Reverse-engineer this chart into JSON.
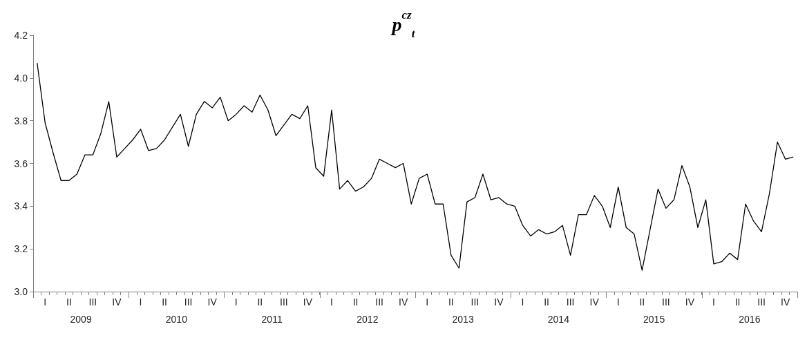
{
  "chart_data": {
    "type": "line",
    "title": "p$^{cz}$$_{t}$",
    "categories": [
      null,
      "I",
      null,
      null,
      "II",
      null,
      null,
      "III",
      null,
      null,
      "IV",
      null,
      null,
      "I",
      null,
      null,
      "II",
      null,
      null,
      "III",
      null,
      null,
      "IV",
      null,
      null,
      "I",
      null,
      null,
      "II",
      null,
      null,
      "III",
      null,
      null,
      "IV",
      null,
      null,
      "I",
      null,
      null,
      "II",
      null,
      null,
      "III",
      null,
      null,
      "IV",
      null,
      null,
      "I",
      null,
      null,
      "II",
      null,
      null,
      "III",
      null,
      null,
      "IV",
      null,
      null,
      "I",
      null,
      null,
      "II",
      null,
      null,
      "III",
      null,
      null,
      "IV",
      null,
      null,
      "I",
      null,
      null,
      "II",
      null,
      null,
      "III",
      null,
      null,
      "IV",
      null,
      null,
      "I",
      null,
      null,
      "II",
      null,
      null,
      "III",
      null,
      null,
      "IV",
      null
    ],
    "annotations": [
      "2009",
      "2010",
      "2011",
      "2012",
      "2013",
      "2014",
      "2015",
      "2016"
    ],
    "series": [
      {
        "color": "#000000",
        "values": [
          4.07,
          3.79,
          3.65,
          3.52,
          3.52,
          3.55,
          3.64,
          3.64,
          3.74,
          3.89,
          3.63,
          3.67,
          3.71,
          3.76,
          3.66,
          3.67,
          3.71,
          3.77,
          3.83,
          3.68,
          3.83,
          3.89,
          3.86,
          3.91,
          3.8,
          3.83,
          3.87,
          3.84,
          3.92,
          3.85,
          3.73,
          3.78,
          3.83,
          3.81,
          3.87,
          3.58,
          3.54,
          3.85,
          3.48,
          3.52,
          3.47,
          3.49,
          3.53,
          3.62,
          3.6,
          3.58,
          3.6,
          3.41,
          3.53,
          3.55,
          3.41,
          3.41,
          3.17,
          3.11,
          3.42,
          3.44,
          3.55,
          3.43,
          3.44,
          3.41,
          3.4,
          3.31,
          3.26,
          3.29,
          3.27,
          3.28,
          3.31,
          3.17,
          3.36,
          3.36,
          3.45,
          3.4,
          3.3,
          3.49,
          3.3,
          3.27,
          3.1,
          3.29,
          3.48,
          3.39,
          3.43,
          3.59,
          3.49,
          3.3,
          3.43,
          3.13,
          3.14,
          3.18,
          3.15,
          3.41,
          3.33,
          3.28,
          3.46,
          3.7,
          3.62,
          3.63
        ]
      }
    ],
    "ylim": [
      3.0,
      4.2
    ],
    "yticks": [
      {
        "value": 3.0,
        "label": "3.0"
      },
      3.2,
      3.4,
      3.6,
      3.8,
      {
        "value": 4.0,
        "label": "4.0"
      },
      4.2
    ],
    "grid": false,
    "marker": "none",
    "line_style": "solid"
  }
}
